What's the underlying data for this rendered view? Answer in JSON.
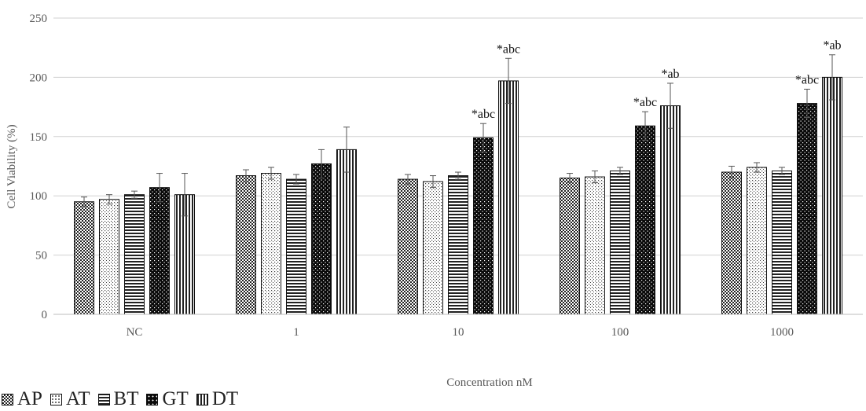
{
  "chart_data": {
    "type": "bar",
    "title": "",
    "xlabel": "Concentration nM",
    "ylabel": "Cell Viability (%)",
    "ylim": [
      0,
      250
    ],
    "yticks": [
      "0",
      "50",
      "100",
      "150",
      "200",
      "250"
    ],
    "grid": true,
    "legend_position": "bottom-left",
    "categories": [
      "NC",
      "1",
      "10",
      "100",
      "1000"
    ],
    "series": [
      {
        "name": "AP",
        "pattern": "checker",
        "values": [
          95,
          117,
          114,
          115,
          120
        ],
        "errors": [
          4,
          5,
          4,
          4,
          5
        ],
        "annotations": [
          "",
          "",
          "",
          "",
          ""
        ]
      },
      {
        "name": "AT",
        "pattern": "dots",
        "values": [
          97,
          119,
          112,
          116,
          124
        ],
        "errors": [
          4,
          5,
          5,
          5,
          4
        ],
        "annotations": [
          "",
          "",
          "",
          "",
          ""
        ]
      },
      {
        "name": "BT",
        "pattern": "hstripes",
        "values": [
          101,
          114,
          117,
          121,
          121
        ],
        "errors": [
          3,
          4,
          3,
          3,
          3
        ],
        "annotations": [
          "",
          "",
          "",
          "",
          ""
        ]
      },
      {
        "name": "GT",
        "pattern": "darkdots",
        "values": [
          107,
          127,
          149,
          159,
          178
        ],
        "errors": [
          12,
          12,
          12,
          12,
          12
        ],
        "annotations": [
          "",
          "",
          "*abc",
          "*abc",
          "*abc"
        ]
      },
      {
        "name": "DT",
        "pattern": "vstripes",
        "values": [
          101,
          139,
          197,
          176,
          200
        ],
        "errors": [
          18,
          19,
          19,
          19,
          19
        ],
        "annotations": [
          "",
          "",
          "*abc",
          "*ab",
          "*ab"
        ]
      }
    ]
  }
}
